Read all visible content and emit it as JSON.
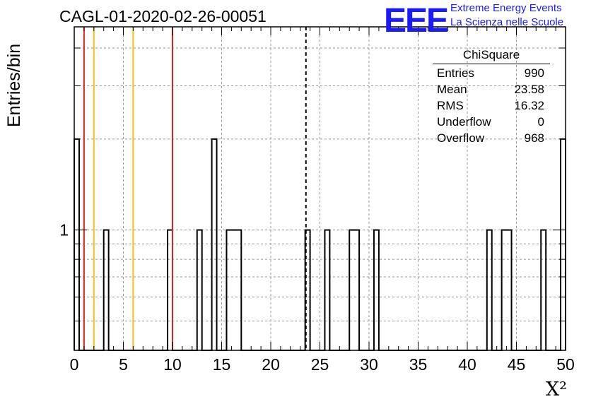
{
  "title": "CAGL-01-2020-02-26-00051",
  "logo": {
    "text": "EEE",
    "line1": "Extreme Energy Events",
    "line2": "La Scienza nelle Scuole",
    "color": "#1a1aff"
  },
  "stats": {
    "title": "ChiSquare",
    "rows": [
      {
        "label": "Entries",
        "value": "990"
      },
      {
        "label": "Mean",
        "value": "23.58"
      },
      {
        "label": "RMS",
        "value": "16.32"
      },
      {
        "label": "Underflow",
        "value": "0"
      },
      {
        "label": "Overflow",
        "value": "968"
      }
    ]
  },
  "chart_data": {
    "type": "bar",
    "title": "CAGL-01-2020-02-26-00051",
    "xlabel": "X²",
    "ylabel": "Entries/bin",
    "xlim": [
      0,
      50
    ],
    "ylog": true,
    "ylim": [
      0.4,
      4.7
    ],
    "xticks": [
      0,
      5,
      10,
      15,
      20,
      25,
      30,
      35,
      40,
      45,
      50
    ],
    "yticks": [
      1
    ],
    "grid": true,
    "bin_width": 0.5,
    "bins": [
      {
        "x": 0,
        "value": 2
      },
      {
        "x": 3,
        "value": 1
      },
      {
        "x": 9.5,
        "value": 1
      },
      {
        "x": 12.5,
        "value": 1
      },
      {
        "x": 14,
        "value": 2
      },
      {
        "x": 15.5,
        "value": 1
      },
      {
        "x": 16,
        "value": 1
      },
      {
        "x": 16.5,
        "value": 1
      },
      {
        "x": 23.5,
        "value": 1
      },
      {
        "x": 25.5,
        "value": 1
      },
      {
        "x": 28,
        "value": 1
      },
      {
        "x": 28.5,
        "value": 1
      },
      {
        "x": 30.5,
        "value": 1
      },
      {
        "x": 42,
        "value": 1
      },
      {
        "x": 43.5,
        "value": 1
      },
      {
        "x": 44,
        "value": 1
      },
      {
        "x": 47.5,
        "value": 1
      },
      {
        "x": 49.5,
        "value": 2
      }
    ],
    "vlines": [
      {
        "x": 1,
        "color": "#e0241b",
        "style": "solid"
      },
      {
        "x": 2,
        "color": "#f2c21a",
        "style": "solid"
      },
      {
        "x": 6,
        "color": "#f2c21a",
        "style": "solid"
      },
      {
        "x": 10,
        "color": "#e0241b",
        "style": "solid"
      },
      {
        "x": 23.58,
        "color": "#000000",
        "style": "dashed"
      }
    ]
  }
}
